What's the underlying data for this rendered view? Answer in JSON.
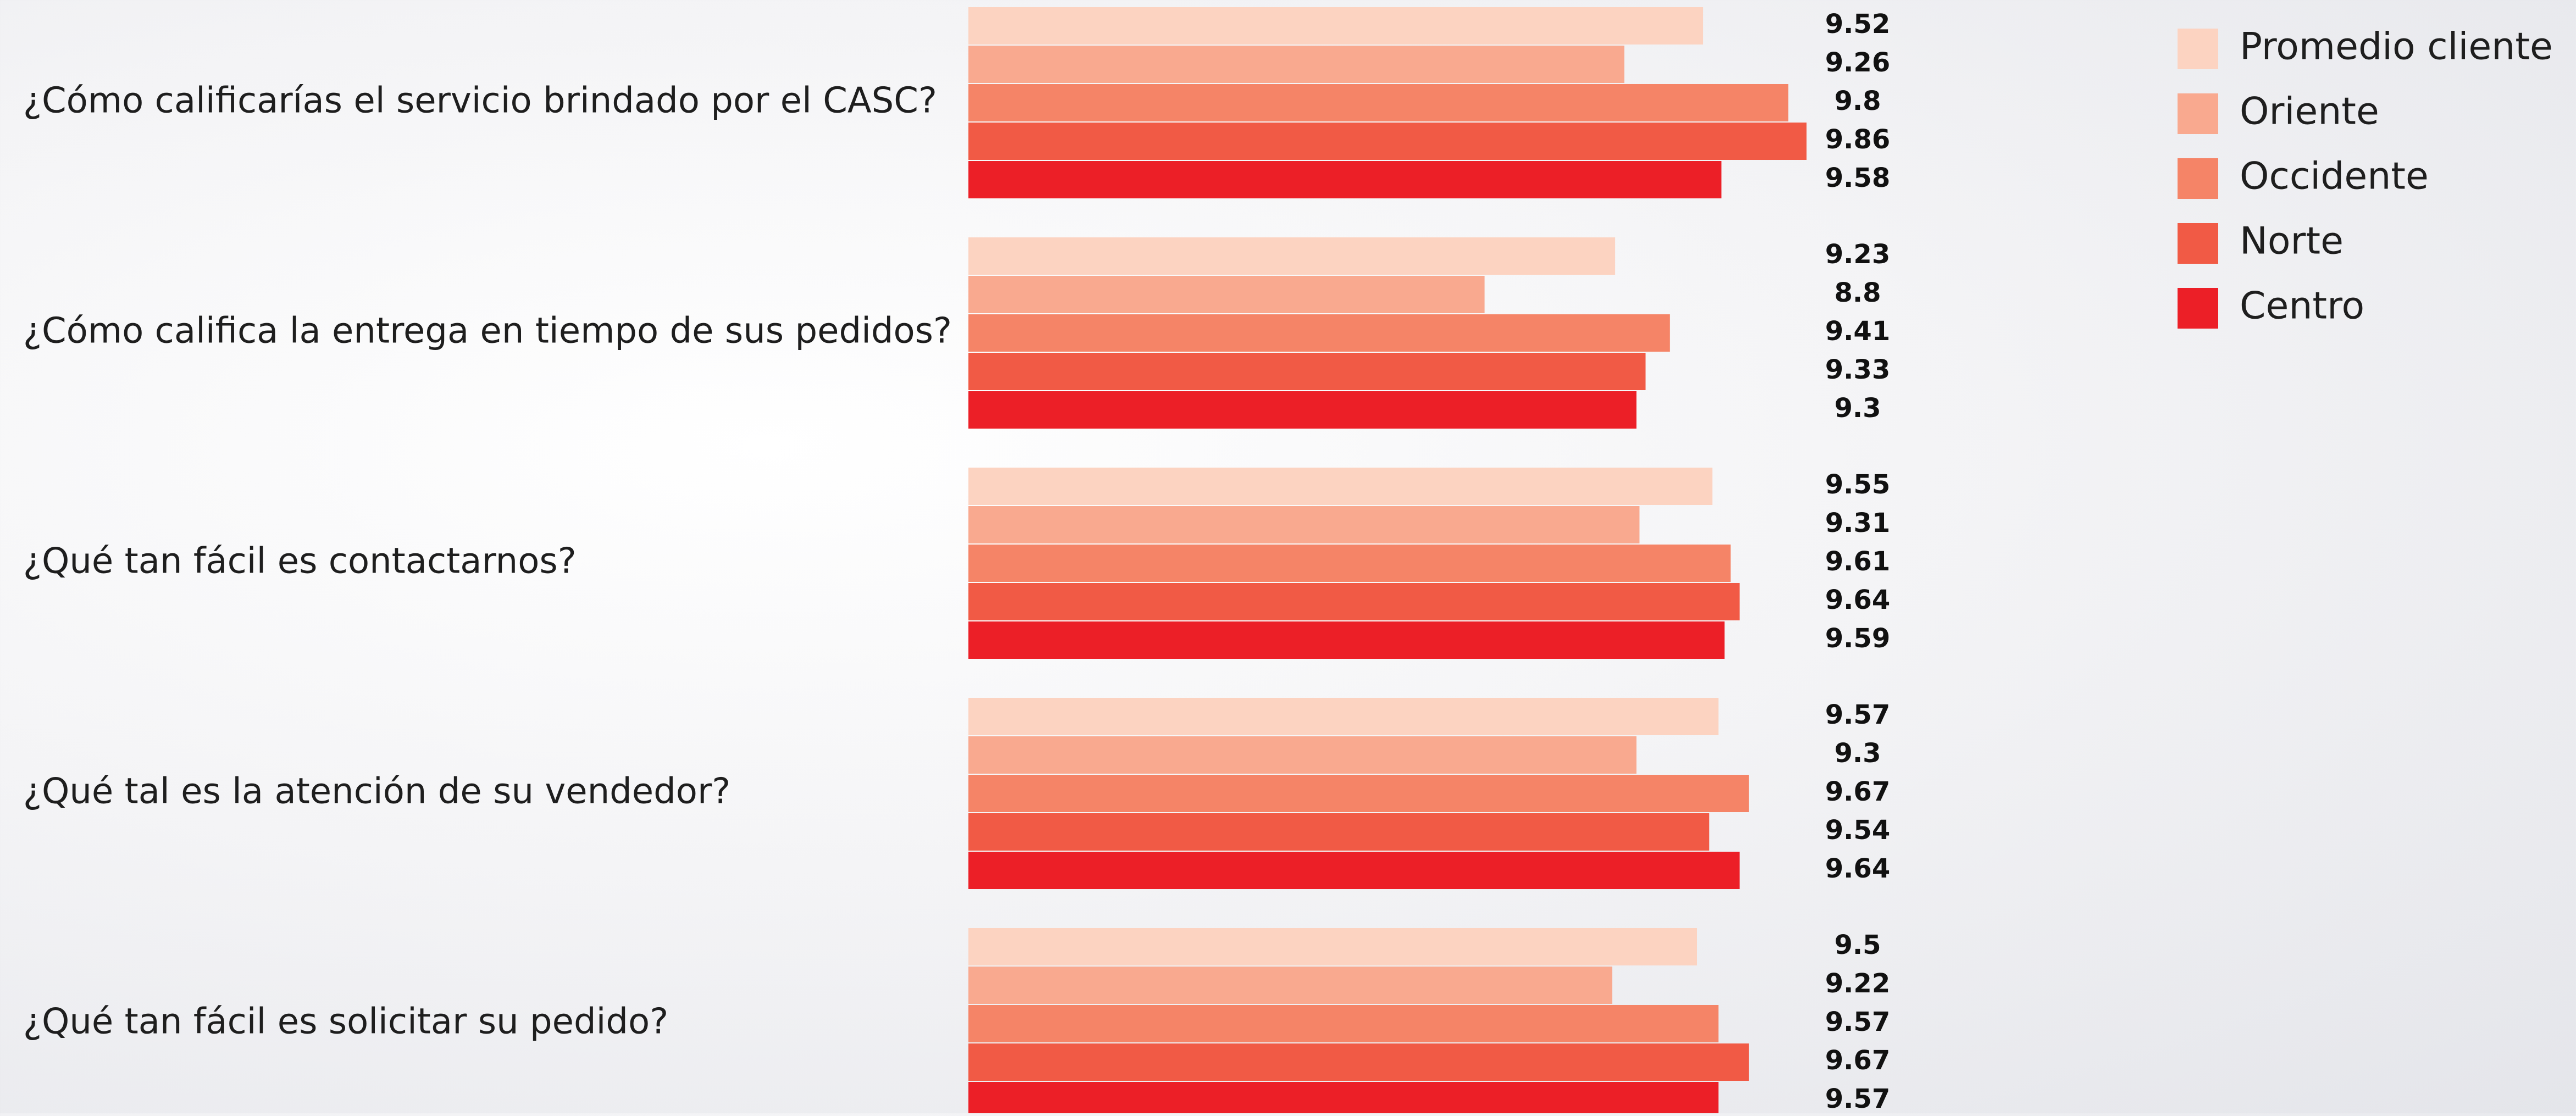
{
  "chart_data": {
    "type": "bar",
    "orientation": "horizontal",
    "categories": [
      "¿Cómo calificarías el servicio brindado por el CASC?",
      "¿Cómo califica la entrega en tiempo de sus pedidos?",
      "¿Qué tan fácil es contactarnos?",
      "¿Qué tal es la atención de su vendedor?",
      "¿Qué tan fácil es solicitar su pedido?"
    ],
    "series": [
      {
        "name": "Promedio cliente",
        "color": "#fcd3c1",
        "values": [
          9.52,
          9.23,
          9.55,
          9.57,
          9.5
        ]
      },
      {
        "name": "Oriente",
        "color": "#f9a98f",
        "values": [
          9.26,
          8.8,
          9.31,
          9.3,
          9.22
        ]
      },
      {
        "name": "Occidente",
        "color": "#f58467",
        "values": [
          9.8,
          9.41,
          9.61,
          9.67,
          9.57
        ]
      },
      {
        "name": "Norte",
        "color": "#f15a45",
        "values": [
          9.86,
          9.33,
          9.64,
          9.54,
          9.67
        ]
      },
      {
        "name": "Centro",
        "color": "#ec1f27",
        "values": [
          9.58,
          9.3,
          9.59,
          9.64,
          9.57
        ]
      }
    ],
    "value_labels": [
      [
        "9.52",
        "9.26",
        "9.8",
        "9.86",
        "9.58"
      ],
      [
        "9.23",
        "8.8",
        "9.41",
        "9.33",
        "9.3"
      ],
      [
        "9.55",
        "9.31",
        "9.61",
        "9.64",
        "9.59"
      ],
      [
        "9.57",
        "9.3",
        "9.67",
        "9.54",
        "9.64"
      ],
      [
        "9.5",
        "9.22",
        "9.57",
        "9.67",
        "9.57"
      ]
    ],
    "xlim": [
      7.1,
      9.9
    ],
    "grid": false,
    "axes_visible": false,
    "legend_position": "top-right"
  }
}
